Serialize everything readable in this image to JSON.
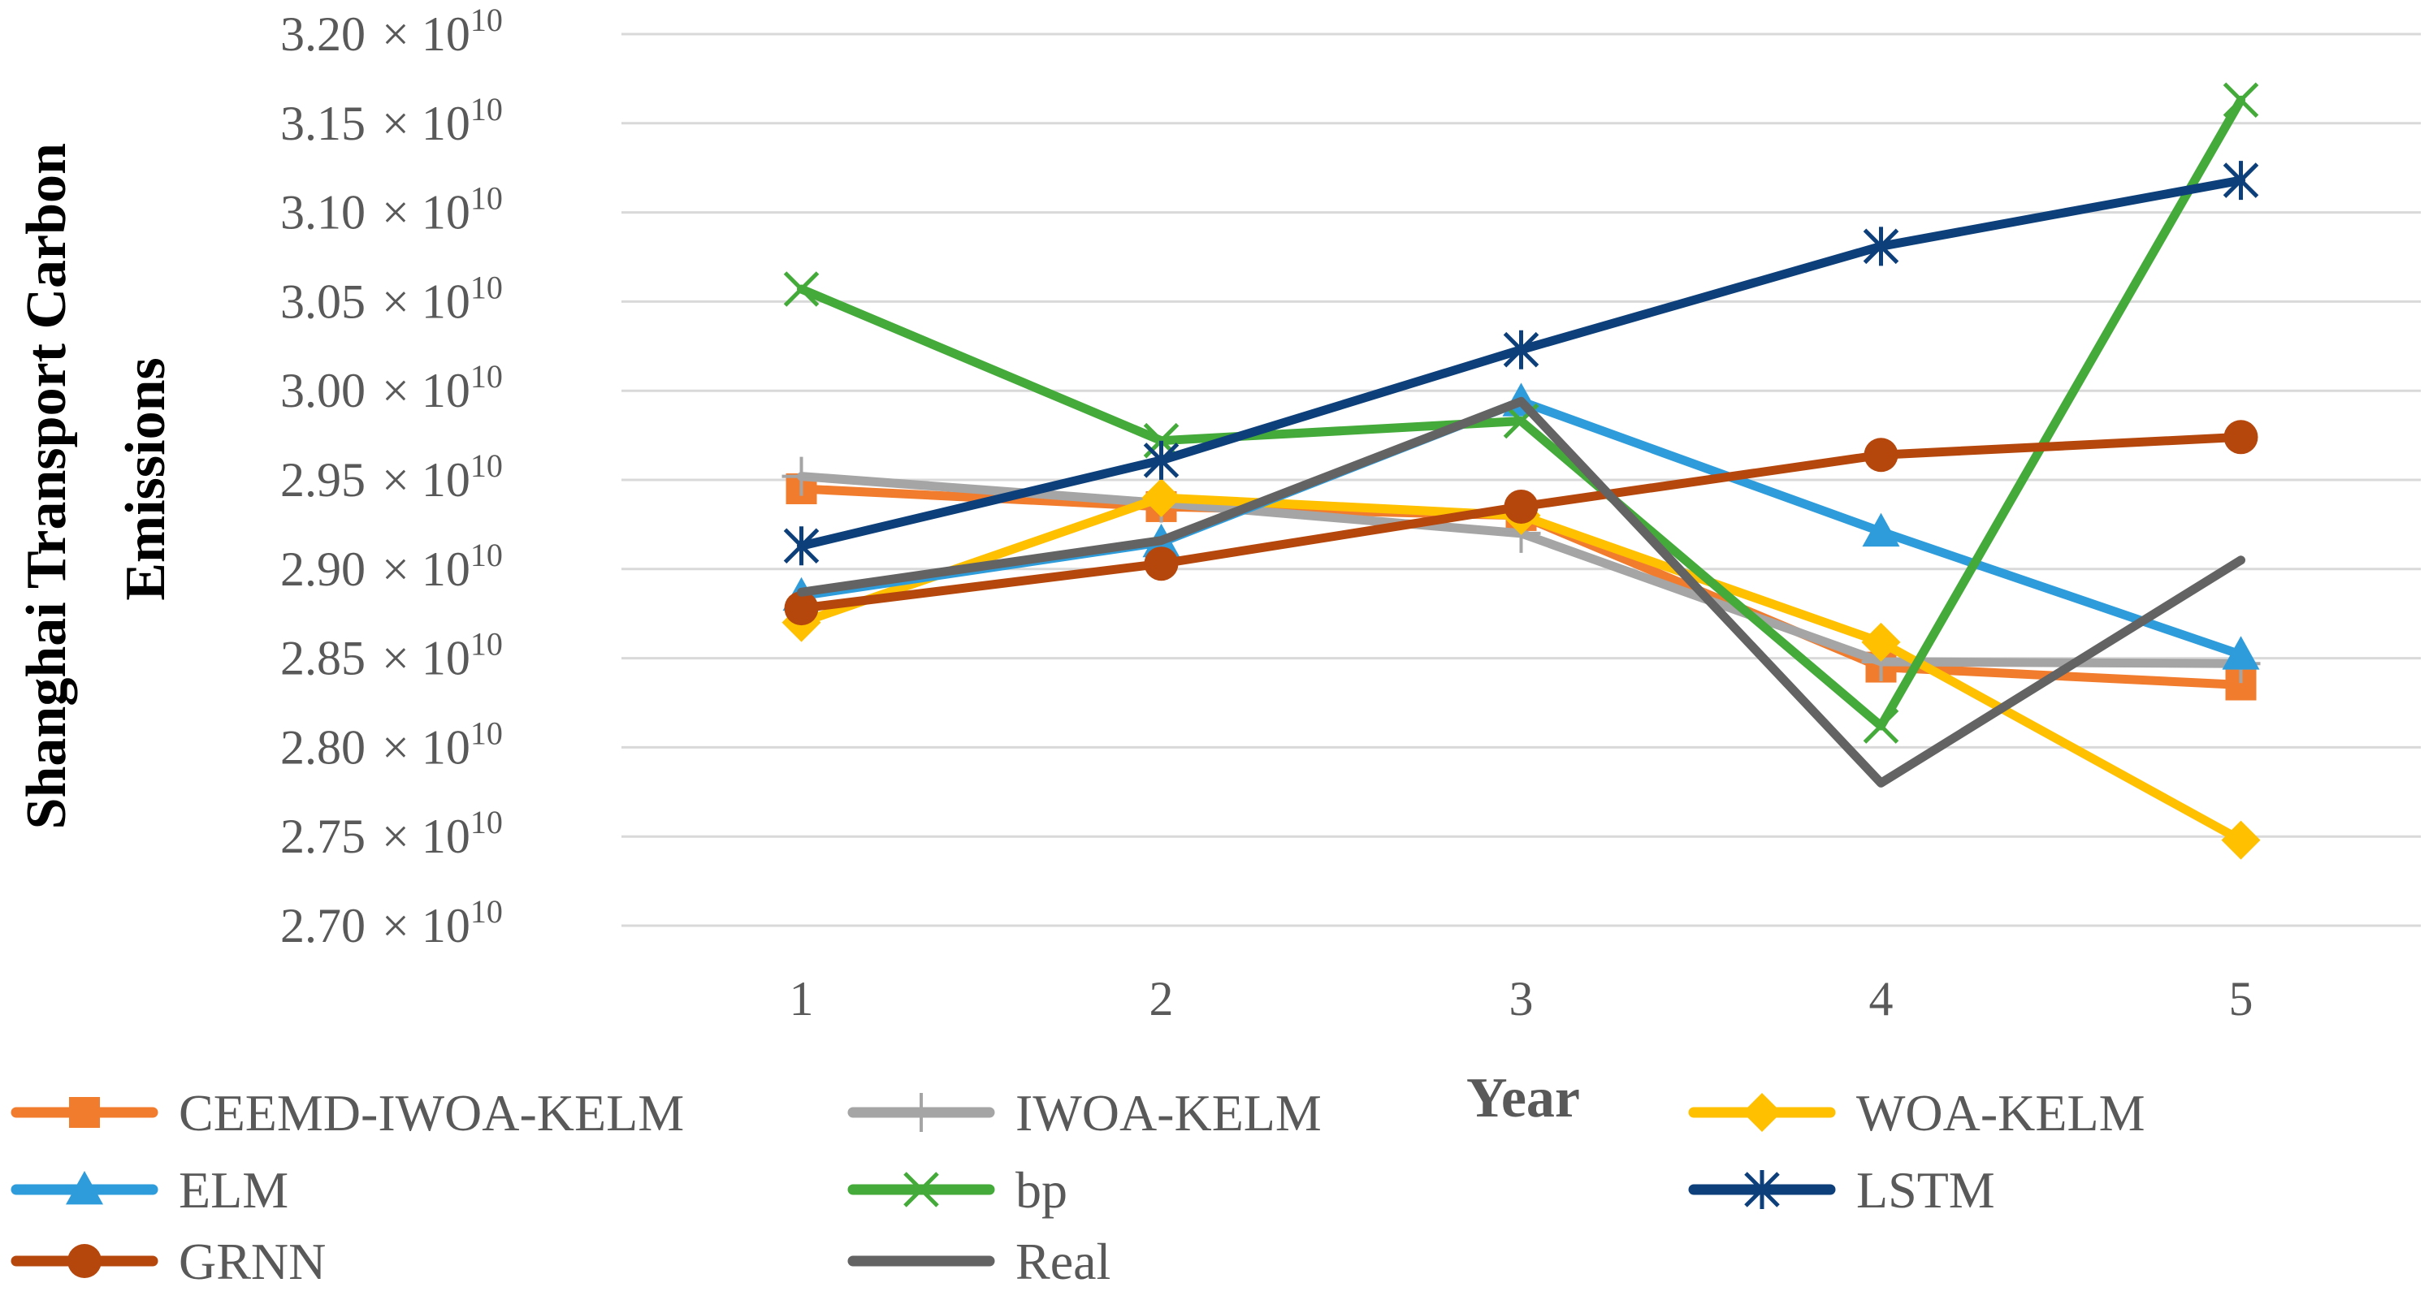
{
  "chart_data": {
    "type": "line",
    "title": "",
    "xlabel": "Year",
    "ylabel_line1": "Shanghai Transport Carbon",
    "ylabel_line2": "Emissions",
    "categories": [
      "1",
      "2",
      "3",
      "4",
      "5"
    ],
    "ylim": [
      2.7,
      3.2
    ],
    "yticks": [
      2.7,
      2.75,
      2.8,
      2.85,
      2.9,
      2.95,
      3.0,
      3.05,
      3.1,
      3.15,
      3.2
    ],
    "ytick_labels": [
      "2.70",
      "2.75",
      "2.80",
      "2.85",
      "2.90",
      "2.95",
      "3.00",
      "3.05",
      "3.10",
      "3.15",
      "3.20"
    ],
    "y_scale_text": "× 10",
    "y_scale_exponent": "10",
    "grid": true,
    "legend_position": "bottom",
    "series": [
      {
        "name": "CEEMD-IWOA-KELM",
        "color": "#F27C2E",
        "marker": "square",
        "values": [
          2.945,
          2.935,
          2.93,
          2.845,
          2.835
        ]
      },
      {
        "name": "IWOA-KELM",
        "color": "#A5A5A5",
        "marker": "plus",
        "values": [
          2.952,
          2.937,
          2.92,
          2.848,
          2.847
        ]
      },
      {
        "name": "WOA-KELM",
        "color": "#FFC000",
        "marker": "diamond",
        "values": [
          2.87,
          2.94,
          2.93,
          2.859,
          2.748
        ]
      },
      {
        "name": "ELM",
        "color": "#2E9CDB",
        "marker": "triangle",
        "values": [
          2.885,
          2.915,
          2.994,
          2.921,
          2.852
        ]
      },
      {
        "name": "bp",
        "color": "#44AA3A",
        "marker": "x",
        "values": [
          3.057,
          2.972,
          2.983,
          2.812,
          3.163
        ]
      },
      {
        "name": "LSTM",
        "color": "#0D3F7A",
        "marker": "star",
        "values": [
          2.913,
          2.961,
          3.023,
          3.081,
          3.118
        ]
      },
      {
        "name": "GRNN",
        "color": "#B5470D",
        "marker": "circle",
        "values": [
          2.878,
          2.903,
          2.935,
          2.964,
          2.974
        ]
      },
      {
        "name": "Real",
        "color": "#636363",
        "marker": "none",
        "values": [
          2.887,
          2.916,
          2.994,
          2.78,
          2.905
        ]
      }
    ]
  }
}
